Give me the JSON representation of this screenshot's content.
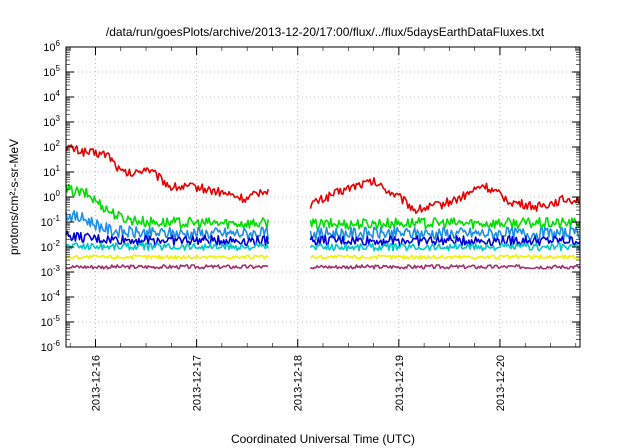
{
  "chart_data": {
    "type": "line",
    "title": "/data/run/goesPlots/archive/2013-12-20/17:00/flux/../flux/5daysEarthDataFluxes.txt",
    "xlabel": "Coordinated Universal Time (UTC)",
    "ylabel": "protons/cm²-s-sr-MeV",
    "yscale": "log",
    "ylim": [
      1e-06,
      1000000.0
    ],
    "xlim": [
      "2013-12-15T17:00",
      "2013-12-20T19:00"
    ],
    "x_ticks": [
      "2013-12-16",
      "2013-12-17",
      "2013-12-18",
      "2013-12-19",
      "2013-12-20"
    ],
    "y_ticks": [
      {
        "base": "10",
        "exp": "-6"
      },
      {
        "base": "10",
        "exp": "-5"
      },
      {
        "base": "10",
        "exp": "-4"
      },
      {
        "base": "10",
        "exp": "-3"
      },
      {
        "base": "10",
        "exp": "-2"
      },
      {
        "base": "10",
        "exp": "-1"
      },
      {
        "base": "10",
        "exp": "0"
      },
      {
        "base": "10",
        "exp": "1"
      },
      {
        "base": "10",
        "exp": "2"
      },
      {
        "base": "10",
        "exp": "3"
      },
      {
        "base": "10",
        "exp": "4"
      },
      {
        "base": "10",
        "exp": "5"
      },
      {
        "base": "10",
        "exp": "6"
      }
    ],
    "grid": true,
    "data_gap": [
      "2013-12-17T17:00",
      "2013-12-18T03:00"
    ],
    "series": [
      {
        "color": "#e80000",
        "x": [
          "2013-12-15T17:00",
          "2013-12-15T22:00",
          "2013-12-16T03:00",
          "2013-12-16T06:00",
          "2013-12-16T09:00",
          "2013-12-16T12:00",
          "2013-12-16T18:00",
          "2013-12-17T00:00",
          "2013-12-17T06:00",
          "2013-12-17T12:00",
          "2013-12-17T16:00",
          "2013-12-18T03:00",
          "2013-12-18T08:00",
          "2013-12-18T14:00",
          "2013-12-18T18:00",
          "2013-12-19T00:00",
          "2013-12-19T04:00",
          "2013-12-19T10:00",
          "2013-12-19T15:00",
          "2013-12-19T20:00",
          "2013-12-20T03:00",
          "2013-12-20T09:00",
          "2013-12-20T15:00",
          "2013-12-20T19:00"
        ],
        "y": [
          100,
          60,
          50,
          10,
          8,
          15,
          2.5,
          2.5,
          1.5,
          0.8,
          2,
          0.5,
          1.2,
          3,
          4,
          1,
          0.3,
          0.5,
          1,
          3,
          0.6,
          0.4,
          0.8,
          0.8
        ]
      },
      {
        "color": "#00e000",
        "x": [
          "2013-12-15T17:00",
          "2013-12-15T22:00",
          "2013-12-16T03:00",
          "2013-12-16T06:00",
          "2013-12-16T12:00",
          "2013-12-17T00:00",
          "2013-12-17T16:00",
          "2013-12-18T03:00",
          "2013-12-19T00:00",
          "2013-12-20T19:00"
        ],
        "y": [
          2,
          1.3,
          0.3,
          0.15,
          0.1,
          0.09,
          0.09,
          0.08,
          0.09,
          0.09
        ]
      },
      {
        "color": "#1e8fe6",
        "x": [
          "2013-12-15T17:00",
          "2013-12-15T22:00",
          "2013-12-16T03:00",
          "2013-12-16T06:00",
          "2013-12-16T12:00",
          "2013-12-17T16:00",
          "2013-12-18T03:00",
          "2013-12-20T19:00"
        ],
        "y": [
          0.2,
          0.12,
          0.05,
          0.04,
          0.035,
          0.035,
          0.035,
          0.035
        ]
      },
      {
        "color": "#0000d8",
        "x": [
          "2013-12-15T17:00",
          "2013-12-15T22:00",
          "2013-12-16T03:00",
          "2013-12-16T12:00",
          "2013-12-17T16:00",
          "2013-12-18T03:00",
          "2013-12-20T19:00"
        ],
        "y": [
          0.03,
          0.022,
          0.02,
          0.019,
          0.018,
          0.018,
          0.018
        ]
      },
      {
        "color": "#00c8c8",
        "x": [
          "2013-12-15T17:00",
          "2013-12-17T16:00",
          "2013-12-18T03:00",
          "2013-12-20T19:00"
        ],
        "y": [
          0.011,
          0.01,
          0.01,
          0.01
        ]
      },
      {
        "color": "#f2f200",
        "x": [
          "2013-12-15T17:00",
          "2013-12-17T16:00",
          "2013-12-18T03:00",
          "2013-12-20T19:00"
        ],
        "y": [
          0.004,
          0.004,
          0.004,
          0.004
        ]
      },
      {
        "color": "#a0306a",
        "x": [
          "2013-12-15T17:00",
          "2013-12-17T16:00",
          "2013-12-18T03:00",
          "2013-12-20T19:00"
        ],
        "y": [
          0.0016,
          0.0016,
          0.0016,
          0.0016
        ]
      }
    ]
  }
}
